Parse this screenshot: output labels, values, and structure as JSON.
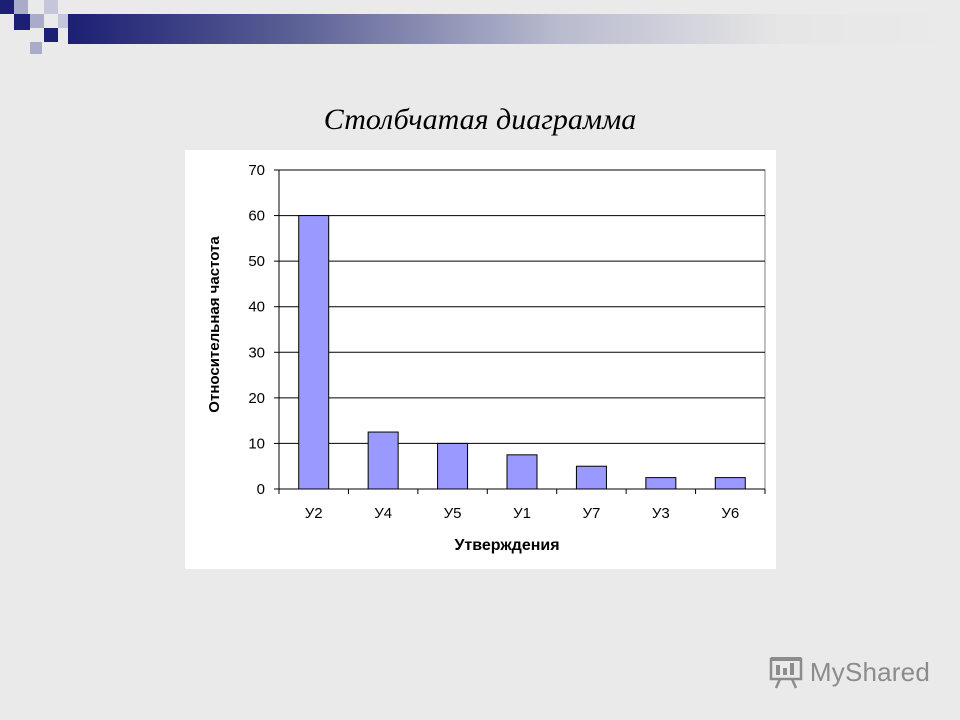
{
  "slide": {
    "title": "Столбчатая диаграмма",
    "watermark": "MyShared"
  },
  "colors": {
    "bar_fill": "#9999ff",
    "bar_stroke": "#000000",
    "grid": "#000000",
    "deco_dark": "#1c1f73",
    "deco_light": "#a9abc9"
  },
  "chart_data": {
    "type": "bar",
    "title": "",
    "xlabel": "Утверждения",
    "ylabel": "Относительная частота",
    "categories": [
      "У2",
      "У4",
      "У5",
      "У1",
      "У7",
      "У3",
      "У6"
    ],
    "values": [
      60,
      12.5,
      10,
      7.5,
      5,
      2.5,
      2.5
    ],
    "ylim": [
      0,
      70
    ],
    "yticks": [
      0,
      10,
      20,
      30,
      40,
      50,
      60,
      70
    ],
    "grid": true,
    "legend": "none"
  }
}
